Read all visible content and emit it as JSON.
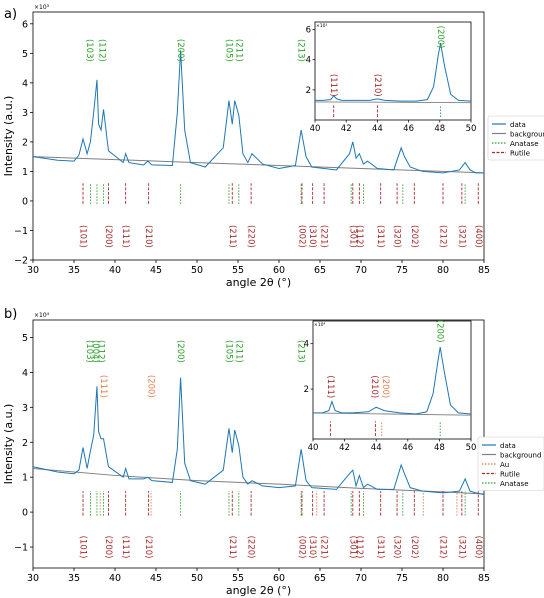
{
  "chart_data": [
    {
      "type": "line",
      "panel_label": "a)",
      "xlabel": "angle 2θ (°)",
      "ylabel": "Intensity (a.u.)",
      "exponent": "×10³",
      "xlim": [
        30,
        85
      ],
      "ylim": [
        -2,
        6.4
      ],
      "xticks": [
        30,
        35,
        40,
        45,
        50,
        55,
        60,
        65,
        70,
        75,
        80,
        85
      ],
      "yticks": [
        -2,
        -1,
        0,
        1,
        2,
        3,
        4,
        5,
        6
      ],
      "legend": [
        "data",
        "background",
        "Anatase",
        "Rutile"
      ],
      "colors": {
        "data": "#1f77b4",
        "background": "#7f7f7f",
        "anatase": "#2ca02c",
        "rutile": "#a52a2a"
      },
      "series": [
        {
          "name": "data",
          "x": [
            30,
            33,
            35,
            35.6,
            36.1,
            36.6,
            37.0,
            37.4,
            37.8,
            38.0,
            38.3,
            38.6,
            39.2,
            41.0,
            41.3,
            41.7,
            43.5,
            44.0,
            44.5,
            47.0,
            47.6,
            48.0,
            48.5,
            49.2,
            51,
            53.2,
            53.9,
            54.3,
            54.6,
            55.1,
            55.6,
            56.2,
            56.7,
            58,
            60,
            62.0,
            62.7,
            63.3,
            64,
            67,
            68.6,
            69.0,
            69.4,
            69.8,
            70.3,
            70.8,
            72,
            74,
            74.9,
            75.3,
            76.0,
            77.5,
            80,
            82,
            82.7,
            83.3,
            84,
            85
          ],
          "y": [
            1.5,
            1.38,
            1.35,
            1.55,
            2.1,
            1.6,
            2.0,
            3.0,
            4.1,
            2.6,
            2.4,
            3.1,
            1.7,
            1.3,
            1.6,
            1.3,
            1.22,
            1.35,
            1.22,
            1.2,
            3.0,
            5.1,
            2.4,
            1.3,
            1.15,
            1.8,
            3.4,
            2.6,
            3.4,
            2.9,
            1.6,
            1.3,
            1.6,
            1.25,
            1.1,
            1.2,
            2.4,
            1.5,
            1.15,
            1.05,
            1.6,
            2.0,
            1.45,
            1.6,
            1.25,
            1.35,
            1.1,
            1.05,
            1.8,
            1.5,
            1.15,
            1.0,
            0.95,
            1.05,
            1.3,
            1.05,
            0.95,
            0.95
          ]
        },
        {
          "name": "background",
          "x": [
            30,
            40,
            50,
            60,
            70,
            80,
            85
          ],
          "y": [
            1.5,
            1.4,
            1.3,
            1.2,
            1.1,
            1.0,
            0.95
          ]
        }
      ],
      "anatase_ticks": [
        37.0,
        37.8,
        38.6,
        48.0,
        53.9,
        55.1,
        62.7,
        68.8,
        70.3,
        75.1,
        82.7
      ],
      "rutile_ticks": [
        36.1,
        39.2,
        41.3,
        44.1,
        54.3,
        56.6,
        62.8,
        64.1,
        65.5,
        69.0,
        69.8,
        72.4,
        74.4,
        76.5,
        80.0,
        82.3,
        84.3
      ],
      "anatase_labels": [
        {
          "text": "(103)",
          "x": 36.9,
          "y": 5.1
        },
        {
          "text": "(112)",
          "x": 38.4,
          "y": 5.1
        },
        {
          "text": "(200)",
          "x": 48.0,
          "y": 5.1
        },
        {
          "text": "(105)",
          "x": 53.9,
          "y": 5.1
        },
        {
          "text": "(211)",
          "x": 55.1,
          "y": 5.1
        },
        {
          "text": "(213)",
          "x": 62.7,
          "y": 5.1
        }
      ],
      "rutile_labels": [
        {
          "text": "(101)",
          "x": 36.1,
          "y": -1.2
        },
        {
          "text": "(200)",
          "x": 39.2,
          "y": -1.2
        },
        {
          "text": "(111)",
          "x": 41.3,
          "y": -1.2
        },
        {
          "text": "(210)",
          "x": 44.1,
          "y": -1.2
        },
        {
          "text": "(211)",
          "x": 54.3,
          "y": -1.2
        },
        {
          "text": "(220)",
          "x": 56.6,
          "y": -1.2
        },
        {
          "text": "(002)",
          "x": 62.8,
          "y": -1.2
        },
        {
          "text": "(310)",
          "x": 64.1,
          "y": -1.2
        },
        {
          "text": "(221)",
          "x": 65.5,
          "y": -1.2
        },
        {
          "text": "(301)",
          "x": 69.0,
          "y": -1.2
        },
        {
          "text": "(112)",
          "x": 69.8,
          "y": -1.2
        },
        {
          "text": "(311)",
          "x": 72.4,
          "y": -1.2
        },
        {
          "text": "(320)",
          "x": 74.4,
          "y": -1.2
        },
        {
          "text": "(202)",
          "x": 76.5,
          "y": -1.2
        },
        {
          "text": "(212)",
          "x": 80.0,
          "y": -1.2
        },
        {
          "text": "(321)",
          "x": 82.3,
          "y": -1.2
        },
        {
          "text": "(400)",
          "x": 84.3,
          "y": -1.2
        }
      ],
      "inset": {
        "xlim": [
          40,
          50
        ],
        "ylim": [
          0,
          6.5
        ],
        "xticks": [
          40,
          42,
          44,
          46,
          48,
          50
        ],
        "yticks": [
          2,
          4,
          6
        ],
        "exponent": "×10³",
        "data": {
          "x": [
            40,
            40.5,
            41.0,
            41.2,
            41.4,
            41.7,
            42.5,
            43.5,
            44.0,
            44.5,
            45.5,
            46.5,
            47.2,
            47.6,
            47.9,
            48.05,
            48.3,
            48.7,
            49.2,
            50
          ],
          "y": [
            1.3,
            1.3,
            1.35,
            1.6,
            1.4,
            1.3,
            1.3,
            1.3,
            1.4,
            1.3,
            1.25,
            1.25,
            1.35,
            2.2,
            4.3,
            5.1,
            3.6,
            1.7,
            1.3,
            1.25
          ]
        },
        "background": {
          "x": [
            40,
            50
          ],
          "y": [
            1.2,
            1.15
          ]
        },
        "rutile_ticks": [
          41.2,
          44.0
        ],
        "anatase_ticks": [
          48.05
        ],
        "labels": [
          {
            "text": "(111)",
            "x": 41.2,
            "y": 2.3,
            "kind": "rutile"
          },
          {
            "text": "(210)",
            "x": 44.0,
            "y": 2.3,
            "kind": "rutile"
          },
          {
            "text": "(200)",
            "x": 48.05,
            "y": 5.5,
            "kind": "anatase"
          }
        ]
      }
    },
    {
      "type": "line",
      "panel_label": "b)",
      "xlabel": "angle 2θ (°)",
      "ylabel": "Intensity (a.u.)",
      "exponent": "×10⁴",
      "xlim": [
        30,
        85
      ],
      "ylim": [
        -1.6,
        5.5
      ],
      "xticks": [
        30,
        35,
        40,
        45,
        50,
        55,
        60,
        65,
        70,
        75,
        80,
        85
      ],
      "yticks": [
        -1,
        0,
        1,
        2,
        3,
        4,
        5
      ],
      "legend": [
        "data",
        "background",
        "Au",
        "Rutile",
        "Anatase"
      ],
      "colors": {
        "data": "#1f77b4",
        "background": "#7f7f7f",
        "au": "#e67e4e",
        "anatase": "#2ca02c",
        "rutile": "#a52a2a"
      },
      "series": [
        {
          "name": "data",
          "x": [
            30,
            33,
            35,
            35.6,
            36.1,
            36.6,
            37.0,
            37.4,
            37.8,
            38.0,
            38.3,
            38.6,
            39.2,
            41.0,
            41.3,
            41.7,
            43.5,
            44.0,
            44.5,
            47.0,
            47.6,
            48.0,
            48.5,
            49.2,
            51,
            53.2,
            53.9,
            54.3,
            54.6,
            55.1,
            55.6,
            56.2,
            56.7,
            58,
            60,
            62.0,
            62.7,
            63.3,
            64,
            67,
            68.6,
            69.0,
            69.4,
            69.8,
            70.3,
            70.8,
            72,
            74,
            74.9,
            75.3,
            76.0,
            77.5,
            80,
            82,
            82.7,
            83.3,
            84,
            85
          ],
          "y": [
            1.3,
            1.15,
            1.1,
            1.2,
            1.85,
            1.25,
            1.75,
            2.2,
            3.6,
            2.3,
            2.1,
            2.1,
            1.3,
            1.0,
            1.25,
            0.95,
            0.95,
            1.0,
            0.9,
            0.85,
            1.8,
            3.85,
            1.4,
            0.9,
            0.8,
            1.2,
            2.4,
            1.7,
            2.35,
            1.9,
            1.0,
            0.8,
            0.9,
            0.75,
            0.7,
            0.75,
            1.8,
            0.9,
            0.7,
            0.65,
            1.1,
            1.2,
            0.75,
            1.05,
            0.7,
            0.8,
            0.65,
            0.65,
            1.35,
            1.1,
            0.7,
            0.6,
            0.55,
            0.6,
            0.95,
            0.6,
            0.55,
            0.5
          ]
        },
        {
          "name": "background",
          "x": [
            30,
            40,
            50,
            60,
            70,
            80,
            85
          ],
          "y": [
            1.25,
            1.05,
            0.9,
            0.8,
            0.68,
            0.58,
            0.52
          ]
        }
      ],
      "anatase_ticks": [
        37.0,
        37.8,
        38.6,
        48.0,
        53.9,
        55.1,
        62.7,
        68.8,
        70.3,
        75.1,
        82.7
      ],
      "au_ticks": [
        38.2,
        44.4,
        64.6,
        77.6,
        81.7
      ],
      "rutile_ticks": [
        36.1,
        39.2,
        41.3,
        44.1,
        54.3,
        56.6,
        62.8,
        64.1,
        65.5,
        69.0,
        69.8,
        72.4,
        74.4,
        76.5,
        80.0,
        82.3,
        84.3
      ],
      "anatase_labels": [
        {
          "text": "(103)",
          "x": 36.9,
          "y": 4.6
        },
        {
          "text": "(004)",
          "x": 37.6,
          "y": 4.6
        },
        {
          "text": "(112)",
          "x": 38.3,
          "y": 4.6
        },
        {
          "text": "(200)",
          "x": 48.0,
          "y": 4.6
        },
        {
          "text": "(105)",
          "x": 53.9,
          "y": 4.6
        },
        {
          "text": "(211)",
          "x": 55.1,
          "y": 4.6
        },
        {
          "text": "(213)",
          "x": 62.7,
          "y": 4.6
        }
      ],
      "au_labels": [
        {
          "text": "(111)",
          "x": 38.6,
          "y": 3.6
        },
        {
          "text": "(200)",
          "x": 44.4,
          "y": 3.6
        }
      ],
      "rutile_labels": [
        {
          "text": "(101)",
          "x": 36.1,
          "y": -1.0
        },
        {
          "text": "(200)",
          "x": 39.2,
          "y": -1.0
        },
        {
          "text": "(111)",
          "x": 41.3,
          "y": -1.0
        },
        {
          "text": "(210)",
          "x": 44.1,
          "y": -1.0
        },
        {
          "text": "(211)",
          "x": 54.3,
          "y": -1.0
        },
        {
          "text": "(220)",
          "x": 56.6,
          "y": -1.0
        },
        {
          "text": "(002)",
          "x": 62.8,
          "y": -1.0
        },
        {
          "text": "(310)",
          "x": 64.1,
          "y": -1.0
        },
        {
          "text": "(221)",
          "x": 65.5,
          "y": -1.0
        },
        {
          "text": "(301)",
          "x": 69.0,
          "y": -1.0
        },
        {
          "text": "(112)",
          "x": 69.8,
          "y": -1.0
        },
        {
          "text": "(311)",
          "x": 72.4,
          "y": -1.0
        },
        {
          "text": "(320)",
          "x": 74.4,
          "y": -1.0
        },
        {
          "text": "(202)",
          "x": 76.5,
          "y": -1.0
        },
        {
          "text": "(212)",
          "x": 80.0,
          "y": -1.0
        },
        {
          "text": "(321)",
          "x": 82.3,
          "y": -1.0
        },
        {
          "text": "(400)",
          "x": 84.3,
          "y": -1.0
        }
      ],
      "inset": {
        "xlim": [
          40,
          50
        ],
        "ylim": [
          -0.2,
          5.0
        ],
        "xticks": [
          40,
          42,
          44,
          46,
          48,
          50
        ],
        "yticks": [
          2,
          4
        ],
        "exponent": "×10⁴",
        "data": {
          "x": [
            40,
            40.6,
            41.0,
            41.2,
            41.4,
            41.8,
            42.5,
            43.5,
            44.0,
            44.5,
            45.5,
            46.5,
            47.2,
            47.6,
            47.9,
            48.05,
            48.3,
            48.7,
            49.2,
            50
          ],
          "y": [
            0.95,
            0.95,
            1.05,
            1.45,
            1.05,
            0.95,
            0.95,
            1.0,
            1.2,
            1.05,
            0.95,
            0.9,
            1.0,
            1.8,
            3.2,
            3.85,
            2.8,
            1.3,
            0.95,
            0.9
          ]
        },
        "background": {
          "x": [
            40,
            50
          ],
          "y": [
            0.95,
            0.85
          ]
        },
        "rutile_ticks": [
          41.1,
          43.95
        ],
        "au_ticks": [
          44.35
        ],
        "anatase_ticks": [
          48.05
        ],
        "labels": [
          {
            "text": "(111)",
            "x": 41.1,
            "y": 2.1,
            "kind": "rutile"
          },
          {
            "text": "(210)",
            "x": 43.9,
            "y": 2.1,
            "kind": "rutile"
          },
          {
            "text": "(200)",
            "x": 44.6,
            "y": 2.1,
            "kind": "au"
          },
          {
            "text": "(200)",
            "x": 48.05,
            "y": 4.55,
            "kind": "anatase"
          }
        ]
      }
    }
  ]
}
